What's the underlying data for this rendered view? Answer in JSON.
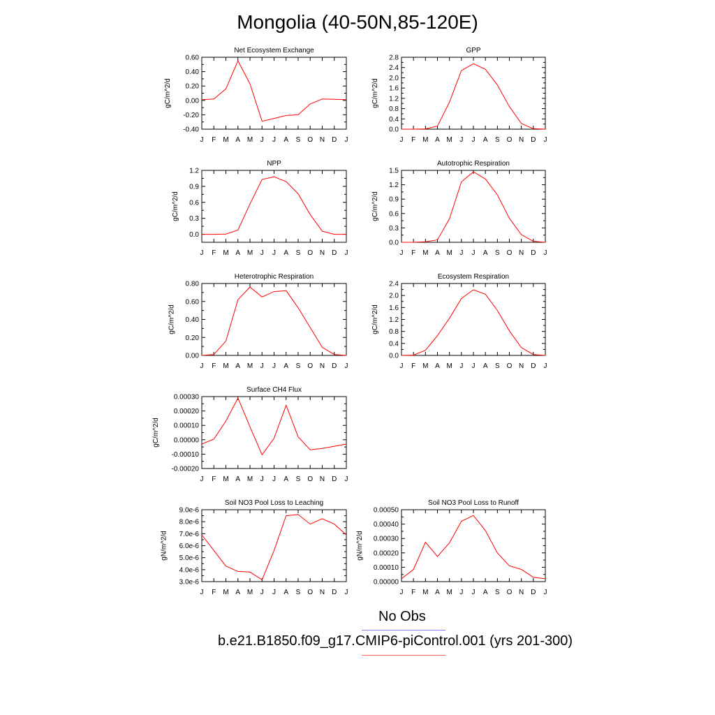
{
  "page": {
    "title": "Mongolia (40-50N,85-120E)"
  },
  "months": [
    "J",
    "F",
    "M",
    "A",
    "M",
    "J",
    "J",
    "A",
    "S",
    "O",
    "N",
    "D",
    "J"
  ],
  "legend": {
    "obs": {
      "label": "No Obs",
      "color": "#8080ff"
    },
    "model": {
      "label": "b.e21.B1850.f09_g17.CMIP6-piControl.001 (yrs 201-300)",
      "color": "#ff6060"
    }
  },
  "line_color": "#ff0000",
  "chart_data": [
    {
      "type": "line",
      "title": "Net Ecosystem Exchange",
      "ylabel": "gC/m^2/d",
      "x": [
        "J",
        "F",
        "M",
        "A",
        "M",
        "J",
        "J",
        "A",
        "S",
        "O",
        "N",
        "D",
        "J"
      ],
      "ylim": [
        -0.4,
        0.6
      ],
      "yticks": [
        "-0.40",
        "-0.20",
        "0.00",
        "0.20",
        "0.40",
        "0.60"
      ],
      "series": [
        {
          "values": [
            0.01,
            0.02,
            0.16,
            0.55,
            0.23,
            -0.29,
            -0.25,
            -0.21,
            -0.2,
            -0.05,
            0.02,
            0.015,
            0.01
          ]
        }
      ]
    },
    {
      "type": "line",
      "title": "GPP",
      "ylabel": "gC/m^2/d",
      "x": [
        "J",
        "F",
        "M",
        "A",
        "M",
        "J",
        "J",
        "A",
        "S",
        "O",
        "N",
        "D",
        "J"
      ],
      "ylim": [
        0,
        2.8
      ],
      "yticks": [
        "0.0",
        "0.4",
        "0.8",
        "1.2",
        "1.6",
        "2.0",
        "2.4",
        "2.8"
      ],
      "series": [
        {
          "values": [
            0.0,
            0.0,
            0.01,
            0.12,
            1.05,
            2.28,
            2.55,
            2.33,
            1.72,
            0.88,
            0.22,
            0.02,
            0.0
          ]
        }
      ]
    },
    {
      "type": "line",
      "title": "NPP",
      "ylabel": "gC/m^2/d",
      "x": [
        "J",
        "F",
        "M",
        "A",
        "M",
        "J",
        "J",
        "A",
        "S",
        "O",
        "N",
        "D",
        "J"
      ],
      "ylim": [
        -0.15,
        1.2
      ],
      "yticks": [
        "0.0",
        "0.3",
        "0.6",
        "0.9",
        "1.2"
      ],
      "series": [
        {
          "values": [
            0.0,
            0.0,
            0.005,
            0.08,
            0.57,
            1.03,
            1.08,
            0.99,
            0.76,
            0.37,
            0.06,
            0.0,
            0.0
          ]
        }
      ]
    },
    {
      "type": "line",
      "title": "Autotrophic Respiration",
      "ylabel": "gC/m^2/d",
      "x": [
        "J",
        "F",
        "M",
        "A",
        "M",
        "J",
        "J",
        "A",
        "S",
        "O",
        "N",
        "D",
        "J"
      ],
      "ylim": [
        0,
        1.5
      ],
      "yticks": [
        "0.0",
        "0.3",
        "0.6",
        "0.9",
        "1.2",
        "1.5"
      ],
      "series": [
        {
          "values": [
            0.0,
            0.0,
            0.01,
            0.05,
            0.49,
            1.26,
            1.47,
            1.32,
            0.99,
            0.5,
            0.16,
            0.02,
            0.0
          ]
        }
      ]
    },
    {
      "type": "line",
      "title": "Heterotrophic Respiration",
      "ylabel": "gC/m^2/d",
      "x": [
        "J",
        "F",
        "M",
        "A",
        "M",
        "J",
        "J",
        "A",
        "S",
        "O",
        "N",
        "D",
        "J"
      ],
      "ylim": [
        0,
        0.8
      ],
      "yticks": [
        "0.00",
        "0.20",
        "0.40",
        "0.60",
        "0.80"
      ],
      "series": [
        {
          "values": [
            0.0,
            0.01,
            0.16,
            0.62,
            0.76,
            0.65,
            0.71,
            0.72,
            0.53,
            0.31,
            0.09,
            0.01,
            0.0
          ]
        }
      ]
    },
    {
      "type": "line",
      "title": "Ecosystem Respiration",
      "ylabel": "gC/m^2/d",
      "x": [
        "J",
        "F",
        "M",
        "A",
        "M",
        "J",
        "J",
        "A",
        "S",
        "O",
        "N",
        "D",
        "J"
      ],
      "ylim": [
        0,
        2.4
      ],
      "yticks": [
        "0.0",
        "0.4",
        "0.8",
        "1.2",
        "1.6",
        "2.0",
        "2.4"
      ],
      "series": [
        {
          "values": [
            0.0,
            0.01,
            0.17,
            0.66,
            1.24,
            1.9,
            2.19,
            2.04,
            1.5,
            0.82,
            0.26,
            0.03,
            0.0
          ]
        }
      ]
    },
    {
      "type": "line",
      "title": "Surface CH4 Flux",
      "ylabel": "gC/m^2/d",
      "x": [
        "J",
        "F",
        "M",
        "A",
        "M",
        "J",
        "J",
        "A",
        "S",
        "O",
        "N",
        "D",
        "J"
      ],
      "ylim": [
        -0.0002,
        0.0003
      ],
      "yticks": [
        "-0.00020",
        "-0.00010",
        "0.00000",
        "0.00010",
        "0.00020",
        "0.00030"
      ],
      "series": [
        {
          "values": [
            -3e-05,
            5e-06,
            0.00013,
            0.00029,
            9e-05,
            -0.000105,
            1e-05,
            0.00024,
            2e-05,
            -7e-05,
            -6e-05,
            -4.5e-05,
            -3e-05
          ]
        }
      ]
    },
    {
      "type": "line",
      "title": "Soil NO3 Pool Loss to Leaching",
      "ylabel": "gN/m^2/d",
      "x": [
        "J",
        "F",
        "M",
        "A",
        "M",
        "J",
        "J",
        "A",
        "S",
        "O",
        "N",
        "D",
        "J"
      ],
      "ylim": [
        3e-06,
        9e-06
      ],
      "yticks": [
        "3.0e-6",
        "4.0e-6",
        "5.0e-6",
        "6.0e-6",
        "7.0e-6",
        "8.0e-6",
        "9.0e-6"
      ],
      "series": [
        {
          "values": [
            6.9e-06,
            5.6e-06,
            4.3e-06,
            3.85e-06,
            3.8e-06,
            3.15e-06,
            5.6e-06,
            8.5e-06,
            8.6e-06,
            7.8e-06,
            8.25e-06,
            7.8e-06,
            6.9e-06
          ]
        }
      ]
    },
    {
      "type": "line",
      "title": "Soil NO3 Pool Loss to Runoff",
      "ylabel": "gN/m^2/d",
      "x": [
        "J",
        "F",
        "M",
        "A",
        "M",
        "J",
        "J",
        "A",
        "S",
        "O",
        "N",
        "D",
        "J"
      ],
      "ylim": [
        0,
        0.0005
      ],
      "yticks": [
        "0.00000",
        "0.00010",
        "0.00020",
        "0.00030",
        "0.00040",
        "0.00050"
      ],
      "series": [
        {
          "values": [
            2e-05,
            8.5e-05,
            0.000275,
            0.000175,
            0.00027,
            0.00042,
            0.00046,
            0.000355,
            0.0002,
            0.00011,
            8.5e-05,
            3e-05,
            2e-05
          ]
        }
      ]
    }
  ]
}
